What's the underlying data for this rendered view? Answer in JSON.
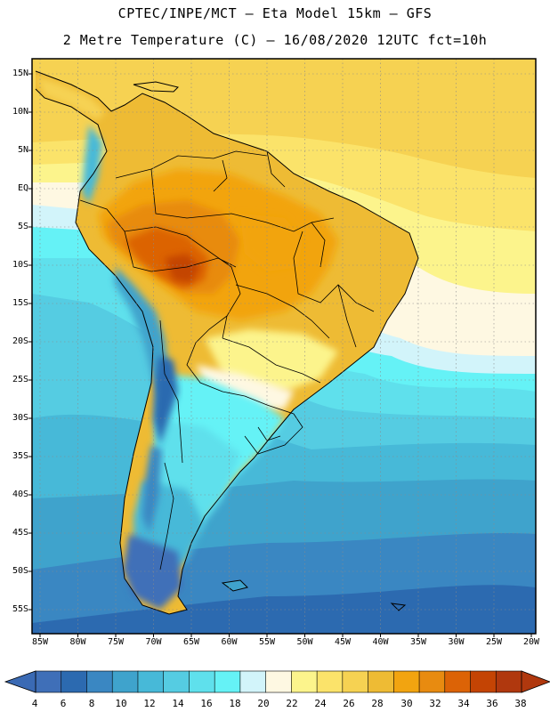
{
  "header": {
    "line1": "CPTEC/INPE/MCT –  Eta Model 15km – GFS",
    "line2": "2 Metre Temperature (C) – 16/08/2020 12UTC fct=10h"
  },
  "map": {
    "lat_labels": [
      "15N",
      "10N",
      "5N",
      "EQ",
      "5S",
      "10S",
      "15S",
      "20S",
      "25S",
      "30S",
      "35S",
      "40S",
      "45S",
      "50S",
      "55S"
    ],
    "lon_labels": [
      "85W",
      "80W",
      "75W",
      "70W",
      "65W",
      "60W",
      "55W",
      "50W",
      "45W",
      "40W",
      "35W",
      "30W",
      "25W",
      "20W"
    ]
  },
  "colorbar": {
    "labels": [
      "4",
      "6",
      "8",
      "10",
      "12",
      "14",
      "16",
      "18",
      "20",
      "22",
      "24",
      "26",
      "28",
      "30",
      "32",
      "34",
      "36",
      "38"
    ],
    "colors": [
      "#3f6fb8",
      "#2c6ab0",
      "#3a87c2",
      "#3fa3cc",
      "#47b9d8",
      "#55cce2",
      "#5fe0ec",
      "#65f2f6",
      "#d2f4fa",
      "#fef8e2",
      "#fcf48c",
      "#fbe36a",
      "#f6d252",
      "#eebb34",
      "#f2a410",
      "#e88b10",
      "#dc6306",
      "#c44404",
      "#b0380e"
    ],
    "low_arrow_color": "#3a6ab4",
    "high_arrow_color": "#b0380e"
  }
}
